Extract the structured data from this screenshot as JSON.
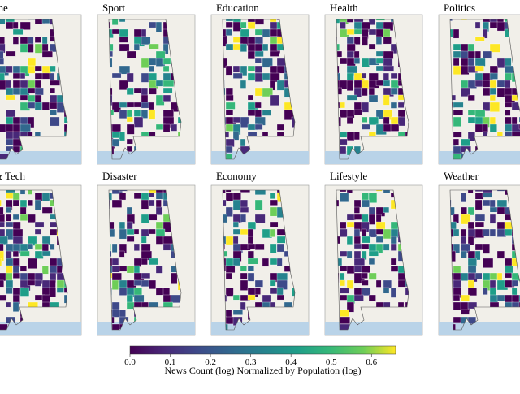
{
  "panels": [
    {
      "title": "rime"
    },
    {
      "title": "Sport"
    },
    {
      "title": "Education"
    },
    {
      "title": "Health"
    },
    {
      "title": "Politics"
    },
    {
      "title": "i & Tech"
    },
    {
      "title": "Disaster"
    },
    {
      "title": "Economy"
    },
    {
      "title": "Lifestyle"
    },
    {
      "title": "Weather"
    }
  ],
  "colorbar": {
    "label": "News Count (log) Normalized by Population (log)",
    "lim": [
      0,
      0.66
    ],
    "ticks": [
      {
        "value": 0,
        "label": "0.0"
      },
      0.1,
      0.2,
      0.3,
      0.4,
      0.5,
      0.6
    ]
  }
}
